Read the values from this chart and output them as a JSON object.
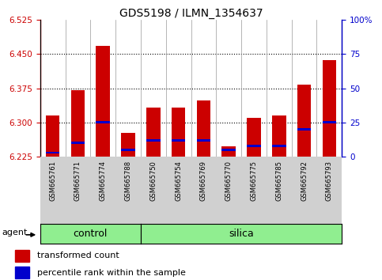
{
  "title": "GDS5198 / ILMN_1354637",
  "samples": [
    "GSM665761",
    "GSM665771",
    "GSM665774",
    "GSM665788",
    "GSM665750",
    "GSM665754",
    "GSM665769",
    "GSM665770",
    "GSM665775",
    "GSM665785",
    "GSM665792",
    "GSM665793"
  ],
  "groups": [
    "control",
    "control",
    "control",
    "control",
    "silica",
    "silica",
    "silica",
    "silica",
    "silica",
    "silica",
    "silica",
    "silica"
  ],
  "transformed_count": [
    6.315,
    6.37,
    6.468,
    6.278,
    6.333,
    6.333,
    6.348,
    6.248,
    6.31,
    6.315,
    6.383,
    6.437
  ],
  "percentile_rank": [
    3,
    10,
    25,
    5,
    12,
    12,
    12,
    5,
    8,
    8,
    20,
    25
  ],
  "y_min": 6.225,
  "y_max": 6.525,
  "y_ticks": [
    6.225,
    6.3,
    6.375,
    6.45,
    6.525
  ],
  "right_y_ticks": [
    0,
    25,
    50,
    75,
    100
  ],
  "bar_color": "#cc0000",
  "percentile_color": "#0000cc",
  "group_bg": "#90ee90",
  "axis_label_color_left": "#cc0000",
  "axis_label_color_right": "#0000cc",
  "bar_width": 0.55,
  "legend_red": "transformed count",
  "legend_blue": "percentile rank within the sample",
  "n_control": 4,
  "n_silica": 8
}
